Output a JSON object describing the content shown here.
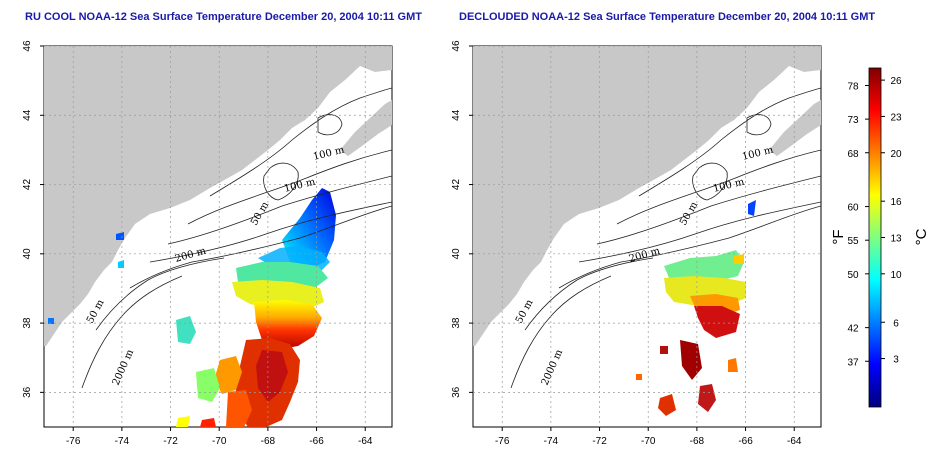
{
  "panels": [
    {
      "title": "RU COOL NOAA-12 Sea Surface Temperature December 20, 2004 10:11 GMT",
      "contour_labels": [
        "100 m",
        "100 m",
        "50 m",
        "200 m",
        "50 m",
        "2000 m"
      ]
    },
    {
      "title": "DECLOUDED NOAA-12 Sea Surface Temperature December 20, 2004 10:11 GMT",
      "contour_labels": [
        "100 m",
        "100 m",
        "50 m",
        "200 m",
        "50 m",
        "2000 m"
      ]
    }
  ],
  "axes": {
    "lon_ticks": [
      "-76",
      "-74",
      "-72",
      "-70",
      "-68",
      "-66",
      "-64"
    ],
    "lat_ticks": [
      "36",
      "38",
      "40",
      "42",
      "44",
      "46"
    ],
    "lon_range": [
      -77.2,
      -62.9
    ],
    "lat_range": [
      35,
      46
    ]
  },
  "colorbar": {
    "unit_f": "°F",
    "unit_c": "°C",
    "f_ticks": [
      "37",
      "42",
      "50",
      "55",
      "60",
      "68",
      "73",
      "78"
    ],
    "c_ticks": [
      "3",
      "6",
      "10",
      "13",
      "16",
      "20",
      "23",
      "26"
    ],
    "colors": [
      "#00007f",
      "#0000ff",
      "#007fff",
      "#00ffff",
      "#7fff7f",
      "#ffff00",
      "#ff7f00",
      "#ff0000",
      "#7f0000"
    ]
  }
}
